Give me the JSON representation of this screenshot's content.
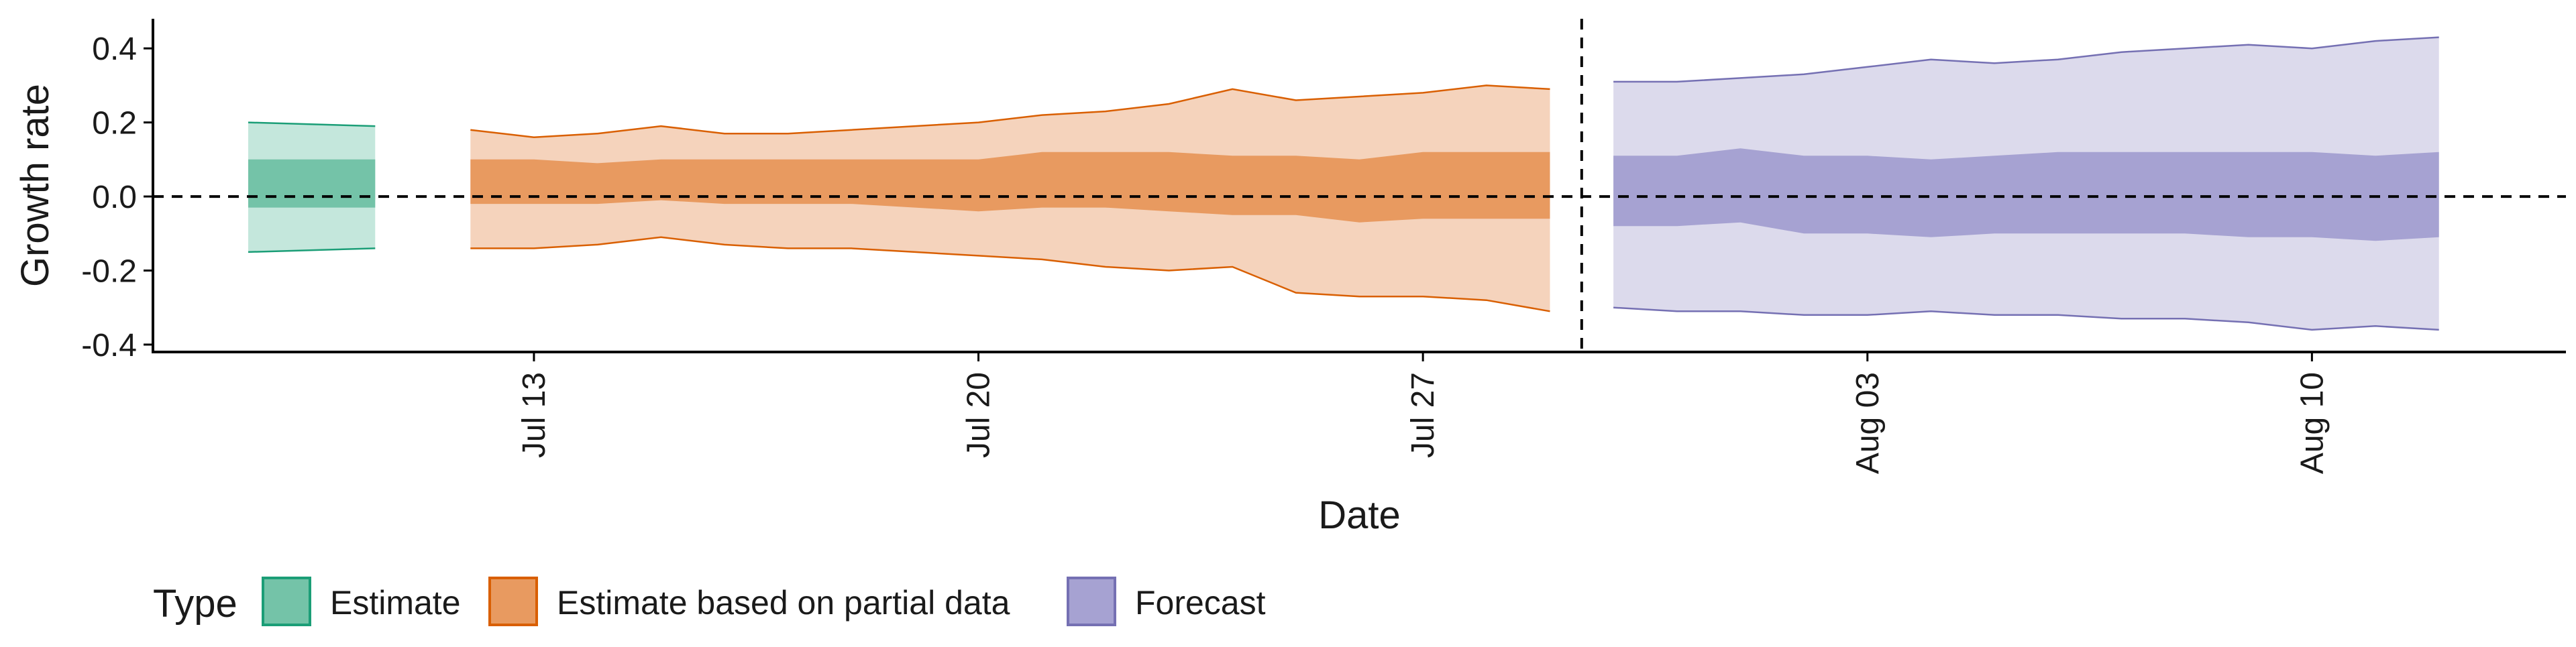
{
  "chart_data": {
    "type": "area",
    "xlabel": "Date",
    "ylabel": "Growth rate",
    "ylim": [
      -0.42,
      0.48
    ],
    "yticks": [
      -0.4,
      -0.2,
      0.0,
      0.2,
      0.4
    ],
    "ytick_labels": [
      "-0.4",
      "-0.2",
      "0.0",
      "0.2",
      "0.4"
    ],
    "xlim": [
      "2020-07-07",
      "2020-08-14"
    ],
    "xticks": [
      "2020-07-13",
      "2020-07-20",
      "2020-07-27",
      "2020-08-03",
      "2020-08-10"
    ],
    "xtick_labels": [
      "Jul 13",
      "Jul 20",
      "Jul 27",
      "Aug 03",
      "Aug 10"
    ],
    "reference_lines": {
      "horizontal_y": 0.0,
      "vertical_x": "2020-07-29"
    },
    "grid": false,
    "legend_position": "bottom",
    "legend_title": "Type",
    "series": [
      {
        "name": "Estimate",
        "color": "#1b9e77",
        "fill_light": "#c4e7dc",
        "fill_dark": "#74c3a8",
        "x": [
          "2020-07-09",
          "2020-07-10"
        ],
        "upper90": [
          0.2,
          0.19
        ],
        "upper50": [
          0.1,
          0.1
        ],
        "lower50": [
          -0.03,
          -0.03
        ],
        "lower90": [
          -0.15,
          -0.14
        ]
      },
      {
        "name": "Estimate based on partial data",
        "color": "#d95f02",
        "fill_light": "#f5d3bc",
        "fill_dark": "#e89a60",
        "x": [
          "2020-07-12",
          "2020-07-13",
          "2020-07-14",
          "2020-07-15",
          "2020-07-16",
          "2020-07-17",
          "2020-07-18",
          "2020-07-19",
          "2020-07-20",
          "2020-07-21",
          "2020-07-22",
          "2020-07-23",
          "2020-07-24",
          "2020-07-25",
          "2020-07-26",
          "2020-07-27",
          "2020-07-28",
          "2020-07-29"
        ],
        "upper90": [
          0.18,
          0.16,
          0.17,
          0.19,
          0.17,
          0.17,
          0.18,
          0.19,
          0.2,
          0.22,
          0.23,
          0.25,
          0.29,
          0.26,
          0.27,
          0.28,
          0.3,
          0.29
        ],
        "upper50": [
          0.1,
          0.1,
          0.09,
          0.1,
          0.1,
          0.1,
          0.1,
          0.1,
          0.1,
          0.12,
          0.12,
          0.12,
          0.11,
          0.11,
          0.1,
          0.12,
          0.12,
          0.12
        ],
        "lower50": [
          -0.02,
          -0.02,
          -0.02,
          -0.01,
          -0.02,
          -0.02,
          -0.02,
          -0.03,
          -0.04,
          -0.03,
          -0.03,
          -0.04,
          -0.05,
          -0.05,
          -0.07,
          -0.06,
          -0.06,
          -0.06
        ],
        "lower90": [
          -0.14,
          -0.14,
          -0.13,
          -0.11,
          -0.13,
          -0.14,
          -0.14,
          -0.15,
          -0.16,
          -0.17,
          -0.19,
          -0.2,
          -0.19,
          -0.26,
          -0.27,
          -0.27,
          -0.28,
          -0.31
        ]
      },
      {
        "name": "Forecast",
        "color": "#7570b3",
        "fill_light": "#dcdaec",
        "fill_dark": "#a6a2d2",
        "x": [
          "2020-07-30",
          "2020-07-31",
          "2020-08-01",
          "2020-08-02",
          "2020-08-03",
          "2020-08-04",
          "2020-08-05",
          "2020-08-06",
          "2020-08-07",
          "2020-08-08",
          "2020-08-09",
          "2020-08-10",
          "2020-08-11",
          "2020-08-12"
        ],
        "upper90": [
          0.31,
          0.31,
          0.32,
          0.33,
          0.35,
          0.37,
          0.36,
          0.37,
          0.39,
          0.4,
          0.41,
          0.4,
          0.42,
          0.43
        ],
        "upper50": [
          0.11,
          0.11,
          0.13,
          0.11,
          0.11,
          0.1,
          0.11,
          0.12,
          0.12,
          0.12,
          0.12,
          0.12,
          0.11,
          0.12
        ],
        "lower50": [
          -0.08,
          -0.08,
          -0.07,
          -0.1,
          -0.1,
          -0.11,
          -0.1,
          -0.1,
          -0.1,
          -0.1,
          -0.11,
          -0.11,
          -0.12,
          -0.11
        ],
        "lower90": [
          -0.3,
          -0.31,
          -0.31,
          -0.32,
          -0.32,
          -0.31,
          -0.32,
          -0.32,
          -0.33,
          -0.33,
          -0.34,
          -0.36,
          -0.35,
          -0.36
        ]
      }
    ]
  }
}
